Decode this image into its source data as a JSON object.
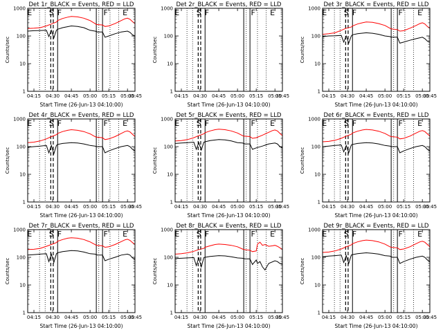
{
  "chart_data": {
    "type": "line",
    "y_scale": "log",
    "ylim": [
      1,
      1000
    ],
    "x_domain_minutes": [
      10,
      96
    ],
    "xtick_labels": [
      "04:15",
      "04:30",
      "04:45",
      "05:00",
      "05:15",
      "05:30",
      "05:45"
    ],
    "xtick_minutes": [
      15,
      30,
      45,
      60,
      75,
      90,
      105
    ],
    "ytick_labels": [
      "1",
      "10",
      "100",
      "1000"
    ],
    "ytick_values": [
      1,
      10,
      100,
      1000
    ],
    "ylabel": "Counts/sec",
    "xlabel": "Start Time (26-Jun-13 04:10:00)",
    "colors": {
      "events": "#000000",
      "lld": "#ff0000"
    },
    "event_marks": [
      {
        "label": "E",
        "x": 11.5
      },
      {
        "label": "S",
        "x": 29
      },
      {
        "label": "F",
        "x": 35.5
      },
      {
        "label": "F",
        "x": 72.5
      },
      {
        "label": "E",
        "x": 88
      }
    ],
    "dotted_lines": [
      19.5,
      24,
      67,
      76,
      83
    ],
    "dashed_lines": [
      28.5,
      30.5
    ],
    "solid_lines": [
      34,
      65,
      70
    ],
    "panels": [
      {
        "title": "Det 1r_BLACK = Events, RED = LLD",
        "series": [
          {
            "name": "Events",
            "color": "#000000",
            "x": [
              10,
              15,
              20,
              25,
              27,
              29,
              31,
              33,
              34,
              38,
              45,
              50,
              55,
              60,
              64,
              65,
              66,
              70,
              72,
              75,
              80,
              85,
              90,
              92,
              94,
              96
            ],
            "y": [
              150,
              155,
              158,
              160,
              95,
              160,
              85,
              160,
              175,
              200,
              230,
              220,
              200,
              160,
              150,
              145,
              140,
              140,
              90,
              100,
              120,
              140,
              150,
              135,
              110,
              100
            ]
          },
          {
            "name": "LLD",
            "color": "#ff0000",
            "x": [
              10,
              15,
              20,
              25,
              29,
              33,
              34,
              38,
              42,
              45,
              50,
              55,
              60,
              64,
              65,
              70,
              72,
              75,
              80,
              85,
              88,
              90,
              92,
              94,
              96
            ],
            "y": [
              185,
              190,
              200,
              230,
              270,
              320,
              360,
              430,
              480,
              510,
              490,
              440,
              360,
              280,
              260,
              250,
              220,
              230,
              280,
              360,
              420,
              440,
              400,
              330,
              280
            ]
          }
        ]
      },
      {
        "title": "Det 2r_BLACK = Events, RED = LLD",
        "series": []
      },
      {
        "title": "Det 3r_BLACK = Events, RED = LLD",
        "series": [
          {
            "name": "Events",
            "color": "#000000",
            "x": [
              10,
              15,
              20,
              25,
              27,
              29,
              31,
              33,
              34,
              38,
              45,
              50,
              55,
              60,
              64,
              65,
              66,
              70,
              72,
              75,
              80,
              85,
              90,
              92,
              94,
              96
            ],
            "y": [
              95,
              100,
              102,
              105,
              60,
              100,
              55,
              100,
              110,
              120,
              130,
              125,
              115,
              100,
              95,
              90,
              90,
              90,
              55,
              60,
              70,
              80,
              90,
              80,
              65,
              60
            ]
          },
          {
            "name": "LLD",
            "color": "#ff0000",
            "x": [
              10,
              15,
              20,
              25,
              29,
              33,
              34,
              38,
              42,
              45,
              50,
              55,
              60,
              64,
              65,
              70,
              72,
              75,
              80,
              85,
              88,
              90,
              92,
              94,
              96
            ],
            "y": [
              115,
              120,
              130,
              160,
              190,
              210,
              230,
              270,
              300,
              320,
              310,
              280,
              240,
              190,
              180,
              170,
              150,
              155,
              190,
              240,
              280,
              300,
              270,
              220,
              190
            ]
          }
        ]
      },
      {
        "title": "Det 4r_BLACK = Events, RED = LLD",
        "series": [
          {
            "name": "Events",
            "color": "#000000",
            "x": [
              10,
              15,
              20,
              25,
              27,
              29,
              31,
              33,
              34,
              38,
              45,
              50,
              55,
              60,
              64,
              65,
              66,
              70,
              72,
              75,
              80,
              85,
              90,
              92,
              94,
              96
            ],
            "y": [
              95,
              100,
              105,
              110,
              60,
              110,
              55,
              110,
              120,
              130,
              140,
              135,
              125,
              110,
              105,
              100,
              100,
              100,
              60,
              70,
              85,
              100,
              110,
              100,
              80,
              70
            ]
          },
          {
            "name": "LLD",
            "color": "#ff0000",
            "x": [
              10,
              15,
              20,
              25,
              29,
              33,
              34,
              38,
              42,
              45,
              50,
              55,
              60,
              64,
              65,
              70,
              72,
              75,
              80,
              85,
              88,
              90,
              92,
              94,
              96
            ],
            "y": [
              140,
              145,
              160,
              190,
              230,
              270,
              300,
              350,
              390,
              410,
              390,
              350,
              290,
              230,
              220,
              210,
              180,
              190,
              230,
              300,
              350,
              370,
              340,
              280,
              230
            ]
          }
        ]
      },
      {
        "title": "Det 5r_BLACK = Events, RED = LLD",
        "series": [
          {
            "name": "Events",
            "color": "#000000",
            "x": [
              10,
              15,
              20,
              25,
              27,
              29,
              31,
              33,
              34,
              38,
              45,
              50,
              55,
              60,
              64,
              65,
              66,
              70,
              72,
              75,
              80,
              85,
              90,
              92,
              94,
              96
            ],
            "y": [
              130,
              135,
              140,
              145,
              80,
              140,
              75,
              145,
              150,
              165,
              180,
              175,
              160,
              140,
              135,
              130,
              125,
              125,
              80,
              90,
              105,
              125,
              135,
              125,
              100,
              90
            ]
          },
          {
            "name": "LLD",
            "color": "#ff0000",
            "x": [
              10,
              15,
              20,
              25,
              29,
              33,
              34,
              38,
              42,
              45,
              50,
              55,
              60,
              64,
              65,
              70,
              72,
              75,
              80,
              85,
              88,
              90,
              92,
              94,
              96
            ],
            "y": [
              160,
              165,
              180,
              210,
              250,
              290,
              320,
              370,
              410,
              430,
              410,
              370,
              310,
              250,
              240,
              230,
              200,
              210,
              260,
              330,
              380,
              400,
              370,
              300,
              250
            ]
          }
        ]
      },
      {
        "title": "Det 6r_BLACK = Events, RED = LLD",
        "series": [
          {
            "name": "Events",
            "color": "#000000",
            "x": [
              10,
              15,
              20,
              25,
              27,
              29,
              31,
              33,
              34,
              38,
              45,
              50,
              55,
              60,
              64,
              65,
              66,
              70,
              72,
              75,
              80,
              85,
              90,
              92,
              94,
              96
            ],
            "y": [
              100,
              105,
              110,
              115,
              65,
              110,
              60,
              115,
              120,
              130,
              140,
              135,
              125,
              110,
              105,
              100,
              100,
              100,
              60,
              70,
              85,
              100,
              110,
              100,
              80,
              70
            ]
          },
          {
            "name": "LLD",
            "color": "#ff0000",
            "x": [
              10,
              15,
              20,
              25,
              29,
              33,
              34,
              38,
              42,
              45,
              50,
              55,
              60,
              64,
              65,
              70,
              72,
              75,
              80,
              85,
              88,
              90,
              92,
              94,
              96
            ],
            "y": [
              150,
              155,
              170,
              200,
              240,
              280,
              310,
              360,
              400,
              420,
              400,
              360,
              300,
              240,
              230,
              220,
              190,
              200,
              240,
              310,
              360,
              380,
              350,
              290,
              240
            ]
          }
        ]
      },
      {
        "title": "Det 7r_BLACK = Events, RED = LLD",
        "series": [
          {
            "name": "Events",
            "color": "#000000",
            "x": [
              10,
              15,
              20,
              25,
              27,
              29,
              31,
              33,
              34,
              38,
              45,
              50,
              55,
              60,
              64,
              65,
              66,
              70,
              72,
              75,
              80,
              85,
              90,
              92,
              94,
              96
            ],
            "y": [
              120,
              125,
              130,
              135,
              70,
              130,
              65,
              135,
              145,
              160,
              175,
              170,
              155,
              135,
              130,
              125,
              120,
              120,
              75,
              85,
              100,
              120,
              130,
              120,
              95,
              85
            ]
          },
          {
            "name": "LLD",
            "color": "#ff0000",
            "x": [
              10,
              15,
              20,
              25,
              29,
              33,
              34,
              38,
              42,
              45,
              50,
              55,
              60,
              64,
              65,
              70,
              72,
              75,
              80,
              85,
              88,
              90,
              92,
              94,
              96
            ],
            "y": [
              190,
              195,
              210,
              250,
              290,
              340,
              380,
              440,
              490,
              510,
              490,
              440,
              360,
              290,
              270,
              260,
              230,
              240,
              290,
              370,
              430,
              450,
              410,
              340,
              290
            ]
          }
        ]
      },
      {
        "title": "Det 8r_BLACK = Events, RED = LLD",
        "series": [
          {
            "name": "Events",
            "color": "#000000",
            "x": [
              10,
              15,
              20,
              25,
              27,
              29,
              31,
              33,
              34,
              38,
              45,
              50,
              55,
              60,
              64,
              65,
              66,
              70,
              72,
              75,
              76,
              78,
              80,
              82,
              85,
              90,
              92,
              94,
              96
            ],
            "y": [
              90,
              92,
              95,
              98,
              50,
              95,
              45,
              98,
              100,
              108,
              115,
              112,
              105,
              95,
              92,
              90,
              88,
              88,
              55,
              80,
              60,
              70,
              45,
              35,
              60,
              75,
              70,
              60,
              55
            ]
          },
          {
            "name": "LLD",
            "color": "#ff0000",
            "x": [
              10,
              15,
              20,
              25,
              29,
              33,
              34,
              38,
              42,
              45,
              50,
              55,
              60,
              64,
              65,
              70,
              72,
              75,
              76,
              78,
              80,
              82,
              85,
              88,
              90,
              92,
              94,
              96
            ],
            "y": [
              130,
              135,
              145,
              165,
              190,
              210,
              230,
              260,
              290,
              300,
              290,
              270,
              240,
              200,
              190,
              180,
              160,
              170,
              300,
              350,
              270,
              290,
              250,
              260,
              270,
              250,
              220,
              190
            ]
          }
        ]
      },
      {
        "title": "Det 9r_BLACK = Events, RED = LLD",
        "series": [
          {
            "name": "Events",
            "color": "#000000",
            "x": [
              10,
              15,
              20,
              25,
              27,
              29,
              31,
              33,
              34,
              38,
              45,
              50,
              55,
              60,
              64,
              65,
              66,
              70,
              72,
              75,
              80,
              85,
              90,
              92,
              94,
              96
            ],
            "y": [
              105,
              110,
              115,
              120,
              65,
              115,
              60,
              120,
              125,
              135,
              145,
              140,
              130,
              115,
              110,
              105,
              100,
              100,
              60,
              70,
              85,
              100,
              110,
              100,
              80,
              70
            ]
          },
          {
            "name": "LLD",
            "color": "#ff0000",
            "x": [
              10,
              15,
              20,
              25,
              29,
              33,
              34,
              38,
              42,
              45,
              50,
              55,
              60,
              64,
              65,
              70,
              72,
              75,
              80,
              85,
              88,
              90,
              92,
              94,
              96
            ],
            "y": [
              150,
              155,
              170,
              200,
              240,
              280,
              310,
              360,
              400,
              420,
              400,
              360,
              300,
              240,
              230,
              220,
              190,
              200,
              240,
              310,
              360,
              380,
              350,
              290,
              240
            ]
          }
        ]
      }
    ]
  }
}
